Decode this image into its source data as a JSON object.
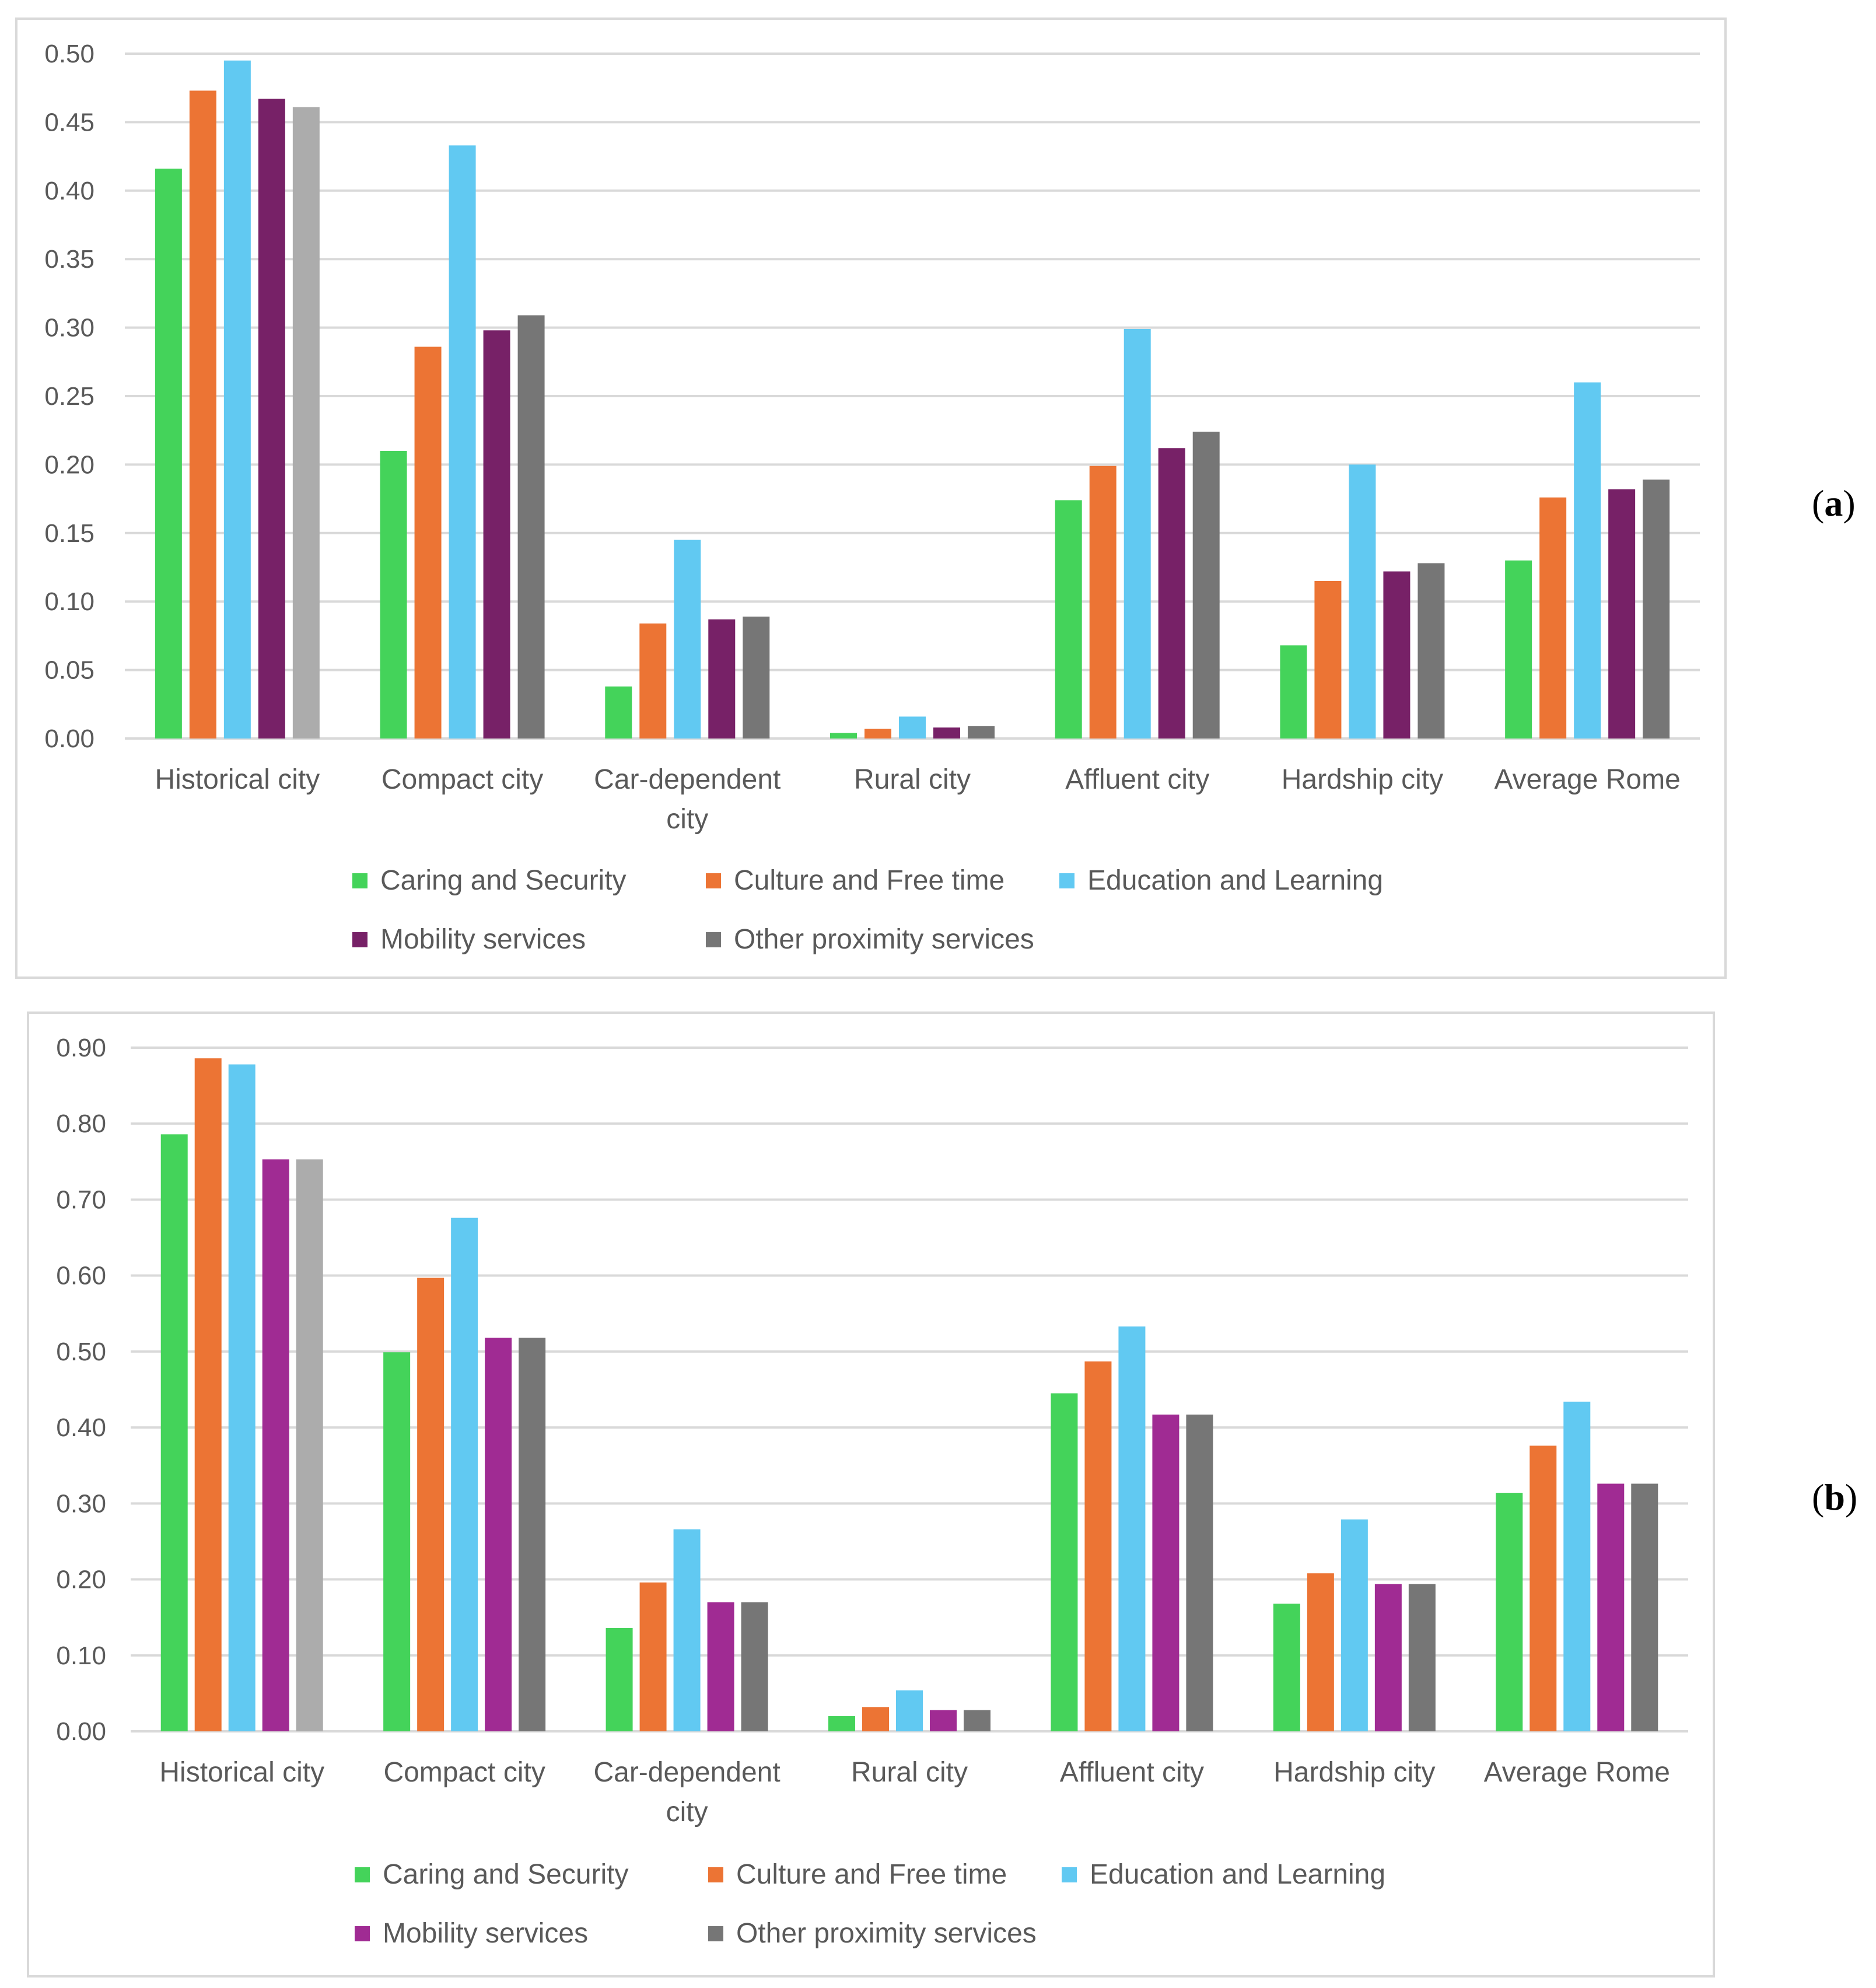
{
  "chart_data": [
    {
      "type": "bar",
      "panel_label": "(a)",
      "panel_letter": "a",
      "categories": [
        "Historical city",
        "Compact city",
        "Car-dependent city",
        "Rural city",
        "Affluent city",
        "Hardship city",
        "Average Rome"
      ],
      "series": [
        {
          "name": "Caring and Security",
          "color": "#44d35a",
          "values": [
            0.416,
            0.21,
            0.038,
            0.004,
            0.174,
            0.068,
            0.13
          ]
        },
        {
          "name": "Culture and Free time",
          "color": "#ec7434",
          "values": [
            0.473,
            0.286,
            0.084,
            0.007,
            0.199,
            0.115,
            0.176
          ]
        },
        {
          "name": "Education and Learning",
          "color": "#61c9f2",
          "values": [
            0.495,
            0.433,
            0.145,
            0.016,
            0.299,
            0.2,
            0.26
          ]
        },
        {
          "name": "Mobility services",
          "color": "#772167",
          "values": [
            0.467,
            0.298,
            0.087,
            0.008,
            0.212,
            0.122,
            0.182
          ]
        },
        {
          "name": "Other proximity services",
          "color": "#767676",
          "values": [
            0.461,
            0.309,
            0.089,
            0.009,
            0.224,
            0.128,
            0.189
          ]
        }
      ],
      "highlight_colors": {
        "Other proximity services|Historical city": "#acacac"
      },
      "ylim": [
        0,
        0.5
      ],
      "yticks": [
        "0.00",
        "0.05",
        "0.10",
        "0.15",
        "0.20",
        "0.25",
        "0.30",
        "0.35",
        "0.40",
        "0.45",
        "0.50"
      ],
      "title": "",
      "xlabel": "",
      "ylabel": "",
      "grid": true,
      "legend_position": "bottom"
    },
    {
      "type": "bar",
      "panel_label": "(b)",
      "panel_letter": "b",
      "categories": [
        "Historical city",
        "Compact city",
        "Car-dependent city",
        "Rural city",
        "Affluent city",
        "Hardship city",
        "Average Rome"
      ],
      "series": [
        {
          "name": "Caring and Security",
          "color": "#44d35a",
          "values": [
            0.786,
            0.499,
            0.136,
            0.02,
            0.445,
            0.168,
            0.314
          ]
        },
        {
          "name": "Culture and Free time",
          "color": "#ec7434",
          "values": [
            0.886,
            0.597,
            0.196,
            0.032,
            0.487,
            0.208,
            0.376
          ]
        },
        {
          "name": "Education and Learning",
          "color": "#61c9f2",
          "values": [
            0.878,
            0.676,
            0.266,
            0.054,
            0.533,
            0.279,
            0.434
          ]
        },
        {
          "name": "Mobility services",
          "color": "#a02b93",
          "values": [
            0.753,
            0.518,
            0.17,
            0.028,
            0.417,
            0.194,
            0.326
          ]
        },
        {
          "name": "Other proximity services",
          "color": "#767676",
          "values": [
            0.753,
            0.518,
            0.17,
            0.028,
            0.417,
            0.194,
            0.326
          ]
        }
      ],
      "highlight_colors": {
        "Other proximity services|Historical city": "#acacac"
      },
      "ylim": [
        0,
        0.9
      ],
      "yticks": [
        "0.00",
        "0.10",
        "0.20",
        "0.30",
        "0.40",
        "0.50",
        "0.60",
        "0.70",
        "0.80",
        "0.90"
      ],
      "title": "",
      "xlabel": "",
      "ylabel": "",
      "grid": true,
      "legend_position": "bottom"
    }
  ]
}
